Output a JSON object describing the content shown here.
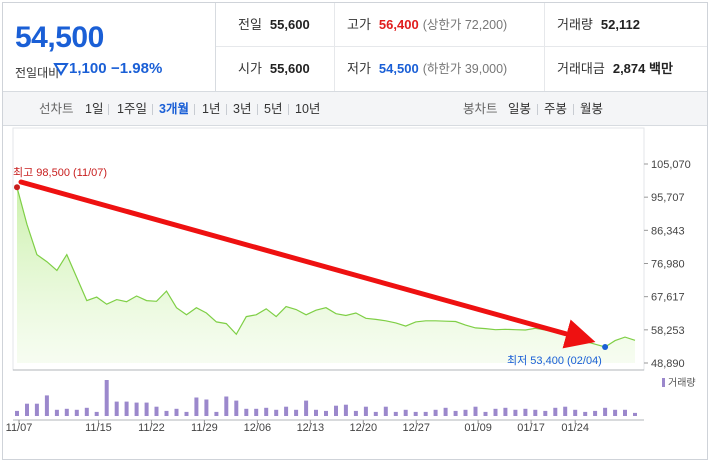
{
  "quote": {
    "price": "54,500",
    "diff_label": "전일대비",
    "diff_value": "1,100",
    "diff_pct": "−1.98%",
    "down_color": "#1a5fd6"
  },
  "stats": {
    "prev_close_label": "전일",
    "prev_close": "55,600",
    "high_label": "고가",
    "high": "56,400",
    "upper_limit": "(상한가 72,200)",
    "volume_label": "거래량",
    "volume": "52,112",
    "open_label": "시가",
    "open": "55,600",
    "low_label": "저가",
    "low": "54,500",
    "lower_limit": "(하한가 39,000)",
    "turnover_label": "거래대금",
    "turnover": "2,874 백만"
  },
  "tabs": {
    "line_label": "선차트",
    "line_items": [
      "1일",
      "1주일",
      "3개월",
      "1년",
      "3년",
      "5년",
      "10년"
    ],
    "line_active": "3개월",
    "candle_label": "봉차트",
    "candle_items": [
      "일봉",
      "주봉",
      "월봉"
    ]
  },
  "chart_data": {
    "type": "line",
    "y_ticks": [
      "105,070",
      "95,707",
      "86,343",
      "76,980",
      "67,617",
      "58,253",
      "48,890"
    ],
    "ylim": [
      48890,
      105070
    ],
    "x_tick_labels": [
      "11/07",
      "11/15",
      "11/22",
      "11/29",
      "12/06",
      "12/13",
      "12/20",
      "12/27",
      "01/09",
      "01/17",
      "01/24"
    ],
    "max_label": "최고 98,500 (11/07)",
    "min_label": "최저 53,400 (02/04)",
    "max_value": 98500,
    "min_value": 53400,
    "price_series": [
      98500,
      88000,
      79500,
      77500,
      75000,
      79500,
      73000,
      66500,
      67500,
      65500,
      66800,
      66200,
      67800,
      66500,
      66300,
      69200,
      64500,
      62500,
      64500,
      63000,
      60500,
      60000,
      57000,
      62000,
      62500,
      64200,
      62000,
      64800,
      64000,
      62500,
      63800,
      64500,
      62800,
      62300,
      63000,
      61500,
      61200,
      60800,
      60200,
      59300,
      60500,
      60800,
      60800,
      60700,
      60600,
      59600,
      58800,
      58600,
      58300,
      58400,
      58300,
      58200,
      58700,
      58200,
      57900,
      57400,
      56400,
      55000,
      54200,
      53400,
      55200,
      56200,
      55300
    ],
    "volume_series": [
      5,
      12,
      12,
      20,
      6,
      7,
      6,
      8,
      4,
      35,
      14,
      14,
      13,
      13,
      9,
      5,
      7,
      4,
      18,
      16,
      4,
      19,
      15,
      7,
      7,
      8,
      6,
      9,
      6,
      15,
      6,
      5,
      10,
      11,
      5,
      9,
      4,
      9,
      4,
      6,
      4,
      4,
      6,
      8,
      5,
      6,
      9,
      4,
      7,
      8,
      6,
      7,
      6,
      5,
      8,
      9,
      6,
      4,
      5,
      8,
      6,
      6,
      3
    ],
    "volume_label": "거래량",
    "line_color": "#7fcf46",
    "volume_color": "#9b88cc",
    "trend_arrow_color": "#ee1111"
  }
}
